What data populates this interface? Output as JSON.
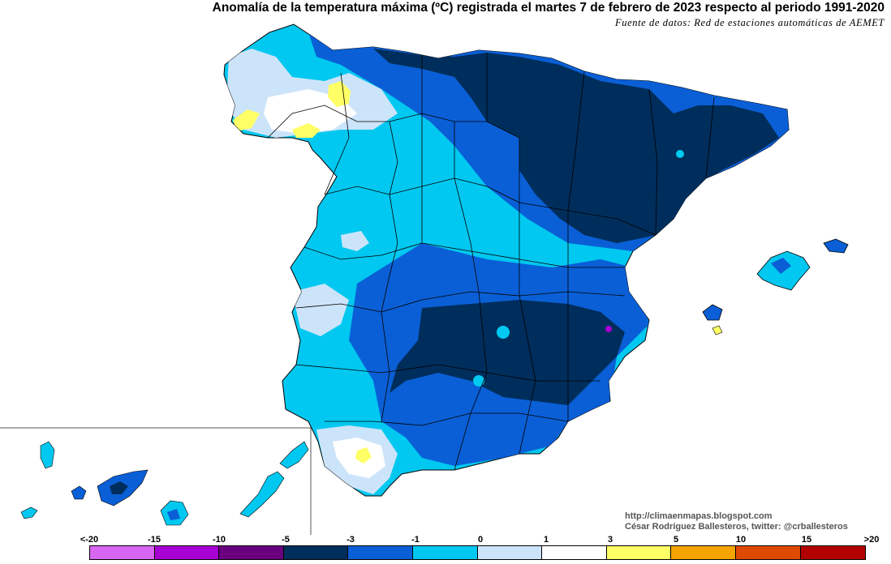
{
  "title": "Anomalía de la temperatura máxima (ºC) registrada el martes 7 de febrero de 2023 respecto al periodo 1991-2020",
  "source": "Fuente de datos: Red de estaciones automáticas de AEMET",
  "credits": {
    "url": "http://climaenmapas.blogspot.com",
    "author": "César Rodríguez Ballesteros, twitter: @crballesteros"
  },
  "legend": {
    "labels": [
      "<-20",
      "-15",
      "-10",
      "-5",
      "-3",
      "-1",
      "0",
      "1",
      "3",
      "5",
      "10",
      "15",
      ">20"
    ],
    "colors": [
      "#d966f2",
      "#a800d4",
      "#6a0080",
      "#002e5c",
      "#0a5fd6",
      "#00c8f0",
      "#cce4fa",
      "#ffffff",
      "#ffff66",
      "#f5a400",
      "#e04a00",
      "#b30000",
      "#6e3a00"
    ]
  },
  "map_colors": {
    "band_neg5_below": "#002e5c",
    "band_neg3_neg5": "#0a5fd6",
    "band_neg1_neg3": "#00c8f0",
    "band_0_neg1": "#cce4fa",
    "band_0_1": "#ffffff",
    "band_1_3": "#ffff66",
    "band_purple": "#a800d4"
  }
}
